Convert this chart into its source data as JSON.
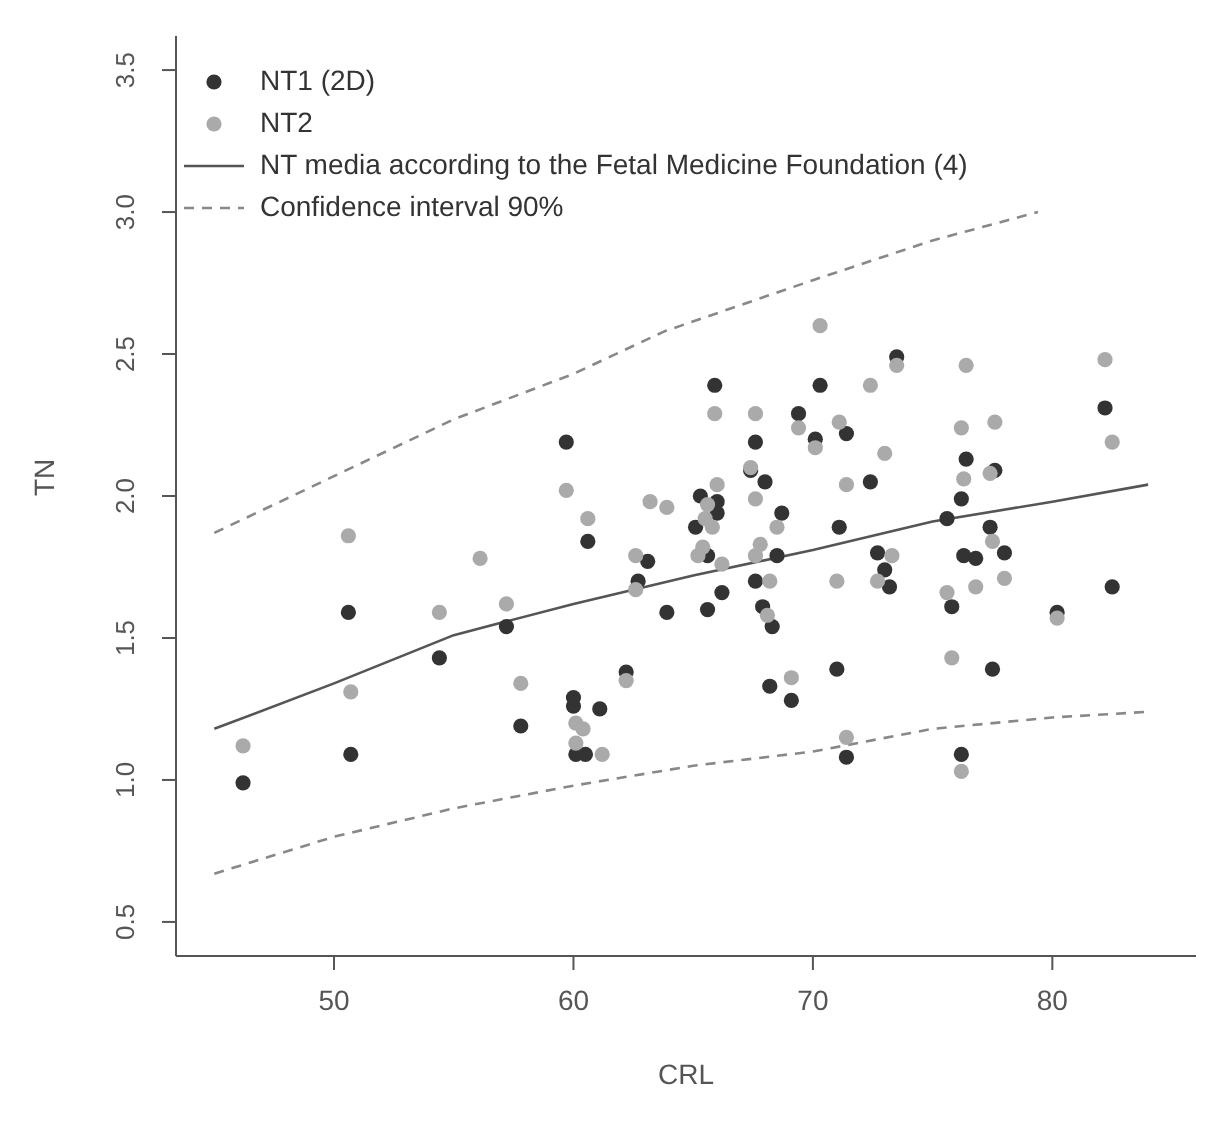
{
  "chart_data": {
    "type": "scatter",
    "xlabel": "CRL",
    "ylabel": "TN",
    "xlim": [
      43.4,
      86
    ],
    "ylim": [
      0.38,
      3.62
    ],
    "xticks": [
      50,
      60,
      70,
      80
    ],
    "yticks": [
      0.5,
      {
        "value": 1,
        "label": "1.0"
      },
      1.5,
      {
        "value": 2,
        "label": "2.0"
      },
      2.5,
      {
        "value": 3,
        "label": "3.0"
      },
      3.5
    ],
    "grid": false,
    "legend": "top left",
    "series": [
      {
        "name": "NT1 (2D)",
        "marker": "circle",
        "color": "#333333",
        "x": [
          46.2,
          50.6,
          50.7,
          54.4,
          57.2,
          57.8,
          59.7,
          60.0,
          60.0,
          60.1,
          60.5,
          60.6,
          61.1,
          62.2,
          62.7,
          63.1,
          63.9,
          65.9,
          70.3,
          73.5,
          82.2,
          69.4,
          71.4,
          67.6,
          70.1,
          67.4,
          68.0,
          72.4,
          76.4,
          77.6,
          65.3,
          66.0,
          66.0,
          76.2,
          68.7,
          65.1,
          71.1,
          75.6,
          77.4,
          65.6,
          68.5,
          72.7,
          73.0,
          76.3,
          76.8,
          78.0,
          67.6,
          73.2,
          66.2,
          82.5,
          65.6,
          67.9,
          68.3,
          75.8,
          80.2,
          71.0,
          77.5,
          68.2,
          69.1,
          71.4,
          76.2
        ],
        "values": [
          0.99,
          1.59,
          1.09,
          1.43,
          1.54,
          1.19,
          2.19,
          1.29,
          1.26,
          1.09,
          1.09,
          1.84,
          1.25,
          1.38,
          1.7,
          1.77,
          1.59,
          2.39,
          2.39,
          2.49,
          2.31,
          2.29,
          2.22,
          2.19,
          2.2,
          2.09,
          2.05,
          2.05,
          2.13,
          2.09,
          2.0,
          1.98,
          1.94,
          1.99,
          1.94,
          1.89,
          1.89,
          1.92,
          1.89,
          1.79,
          1.79,
          1.8,
          1.74,
          1.79,
          1.78,
          1.8,
          1.7,
          1.68,
          1.66,
          1.68,
          1.6,
          1.61,
          1.54,
          1.61,
          1.59,
          1.39,
          1.39,
          1.33,
          1.28,
          1.08,
          1.09
        ]
      },
      {
        "name": "NT2",
        "marker": "circle",
        "color": "#aaaaaa",
        "x": [
          46.2,
          50.6,
          50.7,
          54.4,
          56.1,
          57.2,
          57.8,
          59.7,
          60.1,
          60.4,
          60.1,
          61.2,
          60.6,
          62.2,
          62.6,
          62.6,
          63.2,
          63.9,
          70.3,
          73.5,
          76.4,
          82.2,
          65.9,
          67.6,
          72.4,
          69.4,
          71.1,
          70.1,
          76.2,
          77.6,
          82.5,
          73.0,
          67.4,
          77.4,
          76.3,
          66.0,
          71.4,
          67.6,
          65.6,
          65.5,
          65.8,
          68.5,
          65.4,
          67.8,
          77.5,
          65.2,
          67.6,
          73.3,
          66.2,
          68.2,
          71.0,
          72.7,
          76.8,
          78.0,
          75.6,
          68.1,
          80.2,
          75.8,
          69.1,
          71.4,
          76.2
        ],
        "values": [
          1.12,
          1.86,
          1.31,
          1.59,
          1.78,
          1.62,
          1.34,
          2.02,
          1.2,
          1.18,
          1.13,
          1.09,
          1.92,
          1.35,
          1.79,
          1.67,
          1.98,
          1.96,
          2.6,
          2.46,
          2.46,
          2.48,
          2.29,
          2.29,
          2.39,
          2.24,
          2.26,
          2.17,
          2.24,
          2.26,
          2.19,
          2.15,
          2.1,
          2.08,
          2.06,
          2.04,
          2.04,
          1.99,
          1.97,
          1.92,
          1.89,
          1.89,
          1.82,
          1.83,
          1.84,
          1.79,
          1.79,
          1.79,
          1.76,
          1.7,
          1.7,
          1.7,
          1.68,
          1.71,
          1.66,
          1.58,
          1.57,
          1.43,
          1.36,
          1.15,
          1.03
        ]
      },
      {
        "name": "NT media according to the Fetal Medicine Foundation (4)",
        "type": "line",
        "line_style": "solid",
        "color": "#555555",
        "x": [
          45,
          50,
          55,
          60,
          65,
          70,
          75,
          80,
          84
        ],
        "values": [
          1.18,
          1.34,
          1.51,
          1.62,
          1.72,
          1.81,
          1.91,
          1.98,
          2.04
        ]
      },
      {
        "name": "Confidence interval 90%",
        "type": "line",
        "line_style": "dashed",
        "color": "#888888",
        "x": [
          45,
          50,
          55,
          60,
          63.8,
          70,
          75,
          79.4
        ],
        "values": [
          1.87,
          2.07,
          2.27,
          2.43,
          2.58,
          2.76,
          2.9,
          3.0
        ]
      },
      {
        "type": "line",
        "line_style": "dashed",
        "color": "#888888",
        "x": [
          45,
          50,
          55,
          60,
          65,
          70,
          75,
          80,
          84
        ],
        "values": [
          0.67,
          0.8,
          0.9,
          0.98,
          1.05,
          1.1,
          1.18,
          1.22,
          1.24
        ]
      }
    ]
  }
}
